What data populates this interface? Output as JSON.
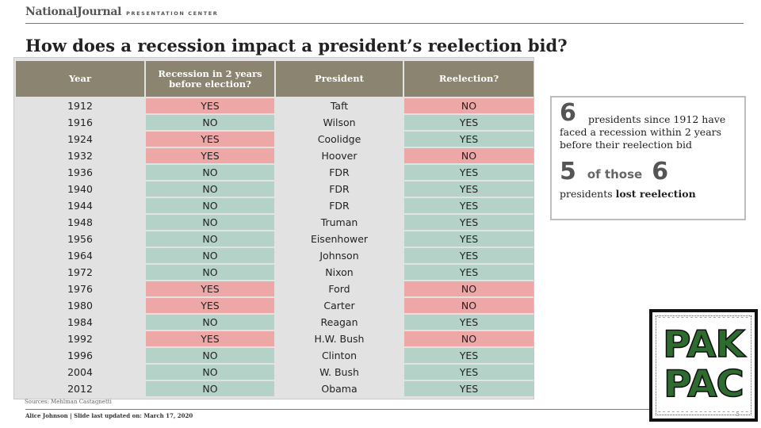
{
  "header": {
    "brand": "NationalJournal",
    "brand_sub": "PRESENTATION CENTER"
  },
  "title": "How does a recession impact a president’s reelection bid?",
  "table": {
    "columns": [
      "Year",
      "Recession in 2 years before election?",
      "President",
      "Reelection?"
    ],
    "rows": [
      {
        "year": "1912",
        "recession": "YES",
        "president": "Taft",
        "reelection": "NO"
      },
      {
        "year": "1916",
        "recession": "NO",
        "president": "Wilson",
        "reelection": "YES"
      },
      {
        "year": "1924",
        "recession": "YES",
        "president": "Coolidge",
        "reelection": "YES"
      },
      {
        "year": "1932",
        "recession": "YES",
        "president": "Hoover",
        "reelection": "NO"
      },
      {
        "year": "1936",
        "recession": "NO",
        "president": "FDR",
        "reelection": "YES"
      },
      {
        "year": "1940",
        "recession": "NO",
        "president": "FDR",
        "reelection": "YES"
      },
      {
        "year": "1944",
        "recession": "NO",
        "president": "FDR",
        "reelection": "YES"
      },
      {
        "year": "1948",
        "recession": "NO",
        "president": "Truman",
        "reelection": "YES"
      },
      {
        "year": "1956",
        "recession": "NO",
        "president": "Eisenhower",
        "reelection": "YES"
      },
      {
        "year": "1964",
        "recession": "NO",
        "president": "Johnson",
        "reelection": "YES"
      },
      {
        "year": "1972",
        "recession": "NO",
        "president": "Nixon",
        "reelection": "YES"
      },
      {
        "year": "1976",
        "recession": "YES",
        "president": "Ford",
        "reelection": "NO"
      },
      {
        "year": "1980",
        "recession": "YES",
        "president": "Carter",
        "reelection": "NO"
      },
      {
        "year": "1984",
        "recession": "NO",
        "president": "Reagan",
        "reelection": "YES"
      },
      {
        "year": "1992",
        "recession": "YES",
        "president": "H.W. Bush",
        "reelection": "NO"
      },
      {
        "year": "1996",
        "recession": "NO",
        "president": "Clinton",
        "reelection": "YES"
      },
      {
        "year": "2004",
        "recession": "NO",
        "president": "W. Bush",
        "reelection": "YES"
      },
      {
        "year": "2012",
        "recession": "NO",
        "president": "Obama",
        "reelection": "YES"
      }
    ]
  },
  "stats": {
    "num_presidents": "6",
    "line1": "presidents since 1912 have faced a recession within 2 years before their reelection bid",
    "num_lost": "5",
    "of_those": "of those",
    "num_total": "6",
    "lost_prefix": "presidents",
    "lost_bold": "lost reelection"
  },
  "sources": "Sources: Mehlman Castagnetti",
  "footer": "Alice Johnson | Slide last updated on: March 17, 2020",
  "logo": {
    "line1": "PAK",
    "line2": "PAC"
  },
  "page_number": "5",
  "colors": {
    "header_bg": "#8b8470",
    "yes_bad": "#eda7a7",
    "good": "#b4d2c8",
    "neutral": "#e2e2e2",
    "logo_green": "#2d6b2f"
  }
}
